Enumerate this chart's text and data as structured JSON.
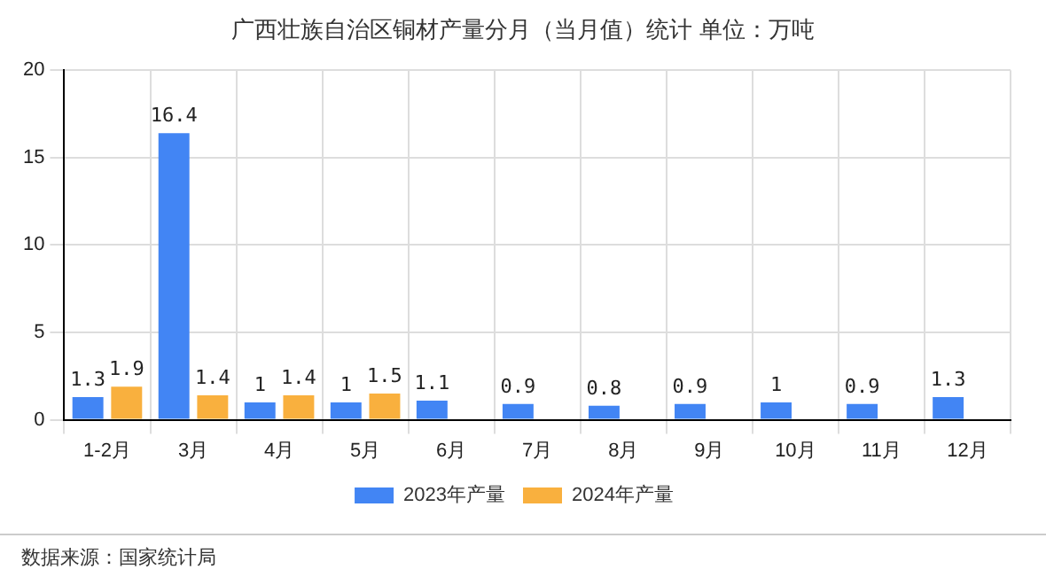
{
  "chart_data": {
    "type": "bar",
    "title": "广西壮族自治区铜材产量分月（当月值）统计  单位：万吨",
    "categories": [
      "1-2月",
      "3月",
      "4月",
      "5月",
      "6月",
      "7月",
      "8月",
      "9月",
      "10月",
      "11月",
      "12月"
    ],
    "series": [
      {
        "name": "2023年产量",
        "color": "#4285f4",
        "values": [
          1.3,
          16.4,
          1,
          1,
          1.1,
          0.9,
          0.8,
          0.9,
          1,
          0.9,
          1.3
        ]
      },
      {
        "name": "2024年产量",
        "color": "#f9b03e",
        "values": [
          1.9,
          1.4,
          1.4,
          1.5,
          null,
          null,
          null,
          null,
          null,
          null,
          null
        ]
      }
    ],
    "ylim": [
      0,
      20
    ],
    "yticks": [
      0,
      5,
      10,
      15,
      20
    ],
    "grid": true,
    "legend": "bottom",
    "data_labels": true,
    "annotations": [
      "数据来源：国家统计局"
    ]
  }
}
